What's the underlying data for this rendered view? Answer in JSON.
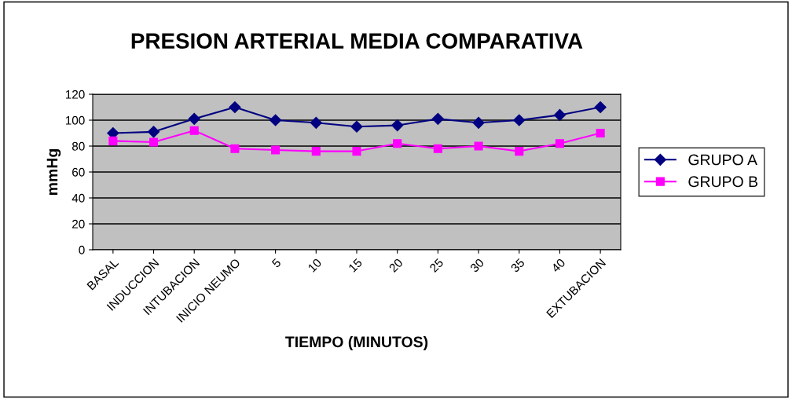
{
  "chart_data": {
    "type": "line",
    "title": "PRESION ARTERIAL MEDIA COMPARATIVA",
    "xlabel": "TIEMPO (MINUTOS)",
    "ylabel": "mmHg",
    "categories": [
      "BASAL",
      "INDUCCION",
      "INTUBACION",
      "INICIO NEUMO",
      "5",
      "10",
      "15",
      "20",
      "25",
      "30",
      "35",
      "40",
      "EXTUBACION"
    ],
    "series": [
      {
        "name": "GRUPO A",
        "color": "#000080",
        "marker": "diamond",
        "values": [
          90,
          91,
          101,
          110,
          100,
          98,
          95,
          96,
          101,
          98,
          100,
          104,
          110
        ]
      },
      {
        "name": "GRUPO B",
        "color": "#ff00ff",
        "marker": "square",
        "values": [
          84,
          83,
          92,
          78,
          77,
          76,
          76,
          82,
          78,
          80,
          76,
          82,
          90
        ]
      }
    ],
    "ylim": [
      0,
      120
    ],
    "yticks": [
      0,
      20,
      40,
      60,
      80,
      100,
      120
    ],
    "grid": "y",
    "legend": "right",
    "line_style": "solid"
  }
}
